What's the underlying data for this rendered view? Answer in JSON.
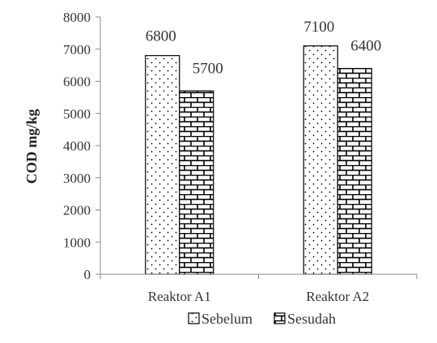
{
  "chart_data": {
    "type": "bar",
    "categories": [
      "Reaktor A1",
      "Reaktor A2"
    ],
    "series": [
      {
        "name": "Sebelum",
        "values": [
          6800,
          7100
        ],
        "pattern": "dots"
      },
      {
        "name": "Sesudah",
        "values": [
          5700,
          6400
        ],
        "pattern": "brick"
      }
    ],
    "title": "",
    "xlabel": "",
    "ylabel": "COD mg/kg",
    "ylim": [
      0,
      8000
    ],
    "yticks": [
      0,
      1000,
      2000,
      3000,
      4000,
      5000,
      6000,
      7000,
      8000
    ],
    "grid": false,
    "legend_position": "bottom",
    "colors": {
      "bar_fill": "#ffffff",
      "bar_stroke": "#000000",
      "axis": "#888888"
    }
  }
}
